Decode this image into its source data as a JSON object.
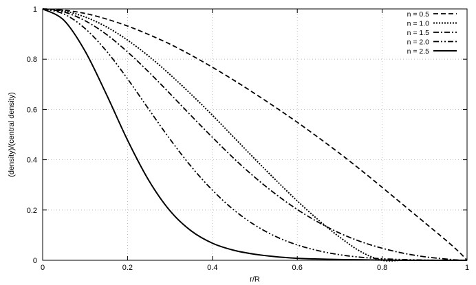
{
  "chart_data": {
    "type": "line",
    "title": "",
    "xlabel": "r/R",
    "ylabel": "(density)/(central density)",
    "xlim": [
      0,
      1
    ],
    "ylim": [
      0,
      1
    ],
    "x_ticks": [
      "0",
      "0.2",
      "0.4",
      "0.6",
      "0.8",
      "1"
    ],
    "y_ticks": [
      "0",
      "0.2",
      "0.4",
      "0.6",
      "0.8",
      "1"
    ],
    "grid": true,
    "legend_position": "top-right",
    "x": [
      0,
      0.05,
      0.1,
      0.15,
      0.2,
      0.25,
      0.3,
      0.35,
      0.4,
      0.45,
      0.5,
      0.55,
      0.6,
      0.65,
      0.7,
      0.75,
      0.8,
      0.85,
      0.9,
      0.95,
      0.98,
      1.0
    ],
    "series": [
      {
        "name": "n = 0.5",
        "dash": "dashed",
        "values": [
          1.0,
          0.995,
          0.982,
          0.96,
          0.932,
          0.898,
          0.86,
          0.816,
          0.768,
          0.717,
          0.663,
          0.607,
          0.549,
          0.488,
          0.425,
          0.359,
          0.29,
          0.22,
          0.15,
          0.08,
          0.035,
          0.0
        ]
      },
      {
        "name": "n = 1.0",
        "dash": "dotted",
        "values": [
          1.0,
          0.992,
          0.968,
          0.929,
          0.876,
          0.812,
          0.739,
          0.66,
          0.577,
          0.49,
          0.403,
          0.318,
          0.236,
          0.16,
          0.092,
          0.034,
          0.0,
          0.0,
          0.0,
          0.0,
          0.0,
          0.0
        ]
      },
      {
        "name": "n = 1.5",
        "dash": "dash-dot",
        "values": [
          1.0,
          0.988,
          0.953,
          0.899,
          0.829,
          0.749,
          0.663,
          0.575,
          0.489,
          0.406,
          0.33,
          0.262,
          0.202,
          0.151,
          0.108,
          0.074,
          0.048,
          0.028,
          0.014,
          0.005,
          0.001,
          0.0
        ]
      },
      {
        "name": "n = 2.0",
        "dash": "dash-dot-dot",
        "values": [
          1.0,
          0.98,
          0.922,
          0.833,
          0.722,
          0.601,
          0.482,
          0.373,
          0.279,
          0.201,
          0.14,
          0.094,
          0.061,
          0.038,
          0.022,
          0.012,
          0.006,
          0.003,
          0.001,
          0.0,
          0.0,
          0.0
        ]
      },
      {
        "name": "n = 2.5",
        "dash": "solid",
        "values": [
          1.0,
          0.955,
          0.832,
          0.661,
          0.478,
          0.318,
          0.197,
          0.117,
          0.068,
          0.04,
          0.024,
          0.014,
          0.008,
          0.005,
          0.003,
          0.002,
          0.001,
          0.0,
          0.0,
          0.0,
          0.0,
          0.0
        ]
      }
    ]
  }
}
